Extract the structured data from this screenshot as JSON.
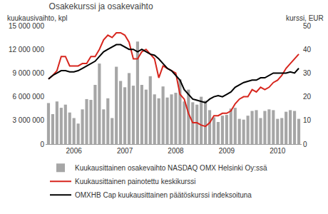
{
  "chart_data": {
    "type": "bar",
    "title": "Osakekurssi ja osakevaihto",
    "y_label": "kuukausivaihto, kpl",
    "y2_label": "kurssi, EUR",
    "categories": [
      null,
      null,
      null,
      null,
      null,
      null,
      "2006",
      null,
      null,
      null,
      null,
      null,
      null,
      null,
      null,
      null,
      null,
      null,
      "2007",
      null,
      null,
      null,
      null,
      null,
      null,
      null,
      null,
      null,
      null,
      null,
      "2008",
      null,
      null,
      null,
      null,
      null,
      null,
      null,
      null,
      null,
      null,
      null,
      "2009",
      null,
      null,
      null,
      null,
      null,
      null,
      null,
      null,
      null,
      null,
      null,
      "2010",
      null,
      null,
      null,
      null,
      null
    ],
    "series": [
      {
        "name": "Kuukausittainen osakevaihto NASDAQ OMX Helsinki Oy:ssä",
        "type": "bar",
        "color": "#a6a6a6",
        "values": [
          5200000,
          3800000,
          5400000,
          4600000,
          5000000,
          4000000,
          3300000,
          2600000,
          4400000,
          5700000,
          5600000,
          7500000,
          10200000,
          4400000,
          5800000,
          3300000,
          9800000,
          8000000,
          7200000,
          9000000,
          7400000,
          13000000,
          7500000,
          6900000,
          8600000,
          6300000,
          5800000,
          7300000,
          5900000,
          6300000,
          6500000,
          8200000,
          5400000,
          6900000,
          5300000,
          5000000,
          6000000,
          5500000,
          4300000,
          3400000,
          2800000,
          3600000,
          3700000,
          4500000,
          4600000,
          3200000,
          3100000,
          3600000,
          4200000,
          4300000,
          3300000,
          4200000,
          4400000,
          4300000,
          3200000,
          3300000,
          4100000,
          4300000,
          4200000,
          3200000
        ]
      },
      {
        "name": "Kuukausittainen painotettu keskikurssi",
        "type": "line",
        "axis": "y2",
        "color": "#d7261e",
        "values": [
          27.5,
          29,
          31,
          37,
          37,
          33,
          33,
          33,
          34,
          34,
          37,
          37,
          40,
          44,
          46,
          45,
          47,
          47,
          46,
          43,
          36,
          36,
          39,
          40,
          38,
          36,
          28,
          33,
          32,
          31,
          30,
          21,
          19,
          13,
          9,
          9,
          8,
          7.5,
          9,
          12,
          12,
          13,
          13,
          14,
          17,
          19,
          20,
          20,
          23,
          22,
          24,
          23,
          24,
          26,
          27,
          29,
          32,
          34,
          36,
          38
        ]
      },
      {
        "name": "OMXHB Cap kuukausittainen päätöskurssi indeksoituna",
        "type": "line",
        "axis": "y2",
        "color": "#000000",
        "values": [
          27.5,
          29,
          30,
          31,
          31,
          30.5,
          30.5,
          31,
          32,
          33,
          34,
          35,
          37,
          39,
          40,
          41,
          42,
          42,
          41,
          40,
          40,
          39,
          40,
          39,
          38,
          37.5,
          36,
          34,
          32,
          31,
          29,
          27,
          23,
          21,
          19,
          18.5,
          18,
          17.5,
          19,
          20,
          20.5,
          20,
          21,
          22,
          24,
          25,
          26,
          26.5,
          27,
          27,
          28,
          28,
          29,
          30,
          30,
          30,
          30,
          30.5,
          30,
          32
        ]
      }
    ],
    "ylim": [
      0,
      15000000
    ],
    "yticks": [
      0,
      {
        "value": 3000000,
        "label": "3 000 000"
      },
      {
        "value": 6000000,
        "label": "6 000 000"
      },
      {
        "value": 9000000,
        "label": "9 000 000"
      },
      {
        "value": 12000000,
        "label": "12 000 000"
      },
      {
        "value": 15000000,
        "label": "15 000 000"
      }
    ],
    "y2lim": [
      0,
      50
    ],
    "y2ticks": [
      0,
      10,
      20,
      30,
      40,
      50
    ],
    "grid": false,
    "legend": "bottom-left"
  }
}
